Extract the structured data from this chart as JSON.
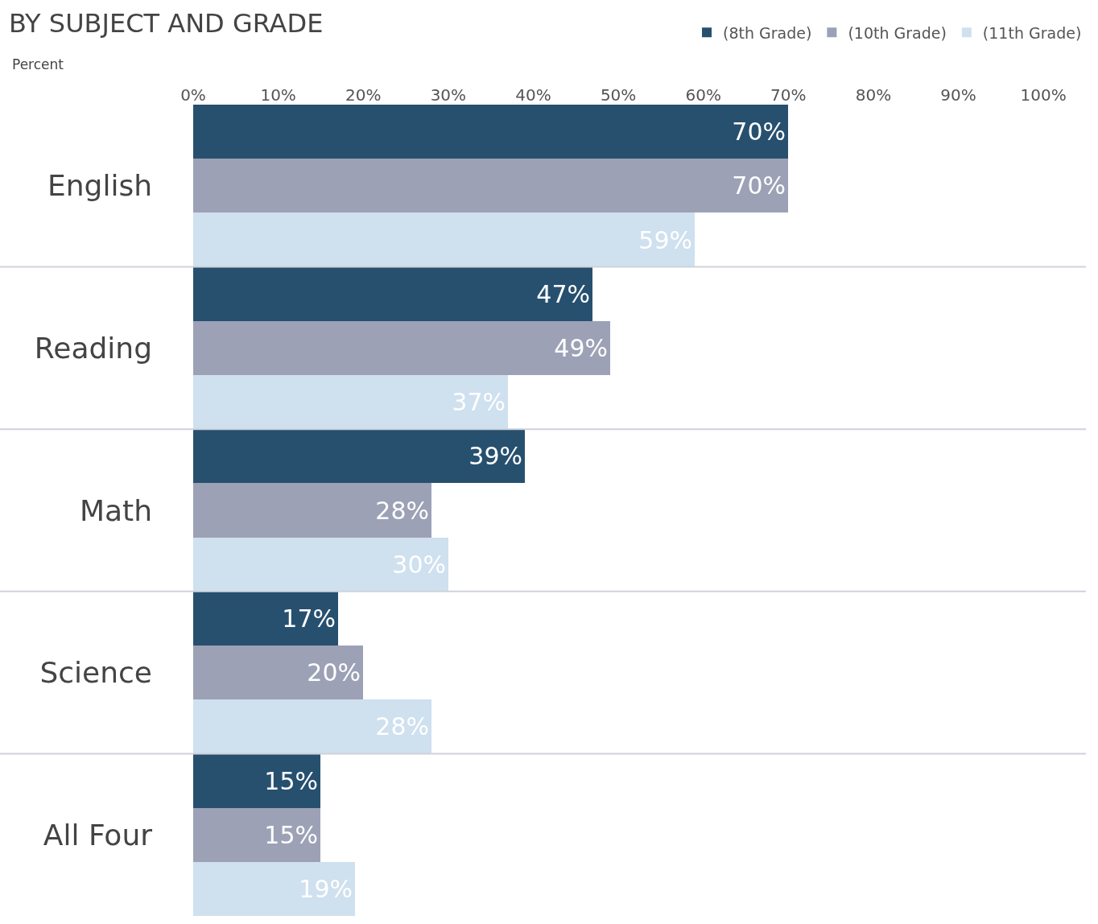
{
  "chart_data": {
    "type": "bar",
    "orientation": "horizontal",
    "title": "BY SUBJECT AND GRADE",
    "xlabel": "Percent",
    "categories": [
      "English",
      "Reading",
      "Math",
      "Science",
      "All Four"
    ],
    "series": [
      {
        "name": "(8th Grade)",
        "color": "#27506f",
        "values": [
          70,
          47,
          39,
          17,
          15
        ],
        "value_labels": [
          "70%",
          "47%",
          "39%",
          "17%",
          "15%"
        ]
      },
      {
        "name": "(10th Grade)",
        "color": "#9ca1b6",
        "values": [
          70,
          49,
          28,
          20,
          15
        ],
        "value_labels": [
          "70%",
          "49%",
          "28%",
          "20%",
          "15%"
        ]
      },
      {
        "name": "(11th Grade)",
        "color": "#cfe0ef",
        "values": [
          59,
          37,
          30,
          28,
          19
        ],
        "value_labels": [
          "59%",
          "37%",
          "30%",
          "28%",
          "19%"
        ]
      }
    ],
    "xlim": [
      0,
      105
    ],
    "xticks": [
      {
        "value": 0,
        "label": "0%"
      },
      {
        "value": 10,
        "label": "10%"
      },
      {
        "value": 20,
        "label": "20%"
      },
      {
        "value": 30,
        "label": "30%"
      },
      {
        "value": 40,
        "label": "40%"
      },
      {
        "value": 50,
        "label": "50%"
      },
      {
        "value": 60,
        "label": "60%"
      },
      {
        "value": 70,
        "label": "70%"
      },
      {
        "value": 80,
        "label": "80%"
      },
      {
        "value": 90,
        "label": "90%"
      },
      {
        "value": 100,
        "label": "100%"
      }
    ],
    "legend": "top right"
  }
}
